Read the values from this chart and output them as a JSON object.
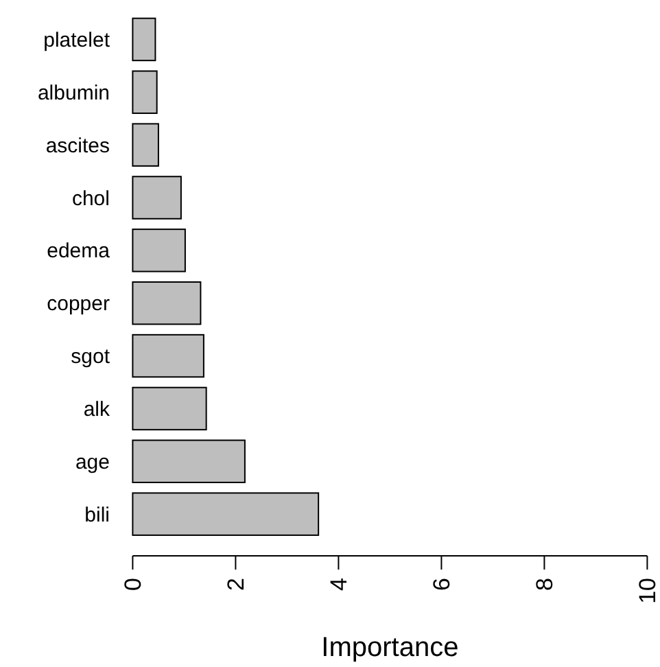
{
  "chart_data": {
    "type": "bar",
    "orientation": "horizontal",
    "xlabel": "Importance",
    "categories": [
      "platelet",
      "albumin",
      "ascites",
      "chol",
      "edema",
      "copper",
      "sgot",
      "alk",
      "age",
      "bili"
    ],
    "values": [
      0.44,
      0.47,
      0.5,
      0.94,
      1.02,
      1.32,
      1.38,
      1.43,
      2.18,
      3.61
    ],
    "color": "#bebebe",
    "xlim": [
      0,
      10
    ],
    "xticks": [
      0,
      2,
      4,
      6,
      8,
      10
    ]
  }
}
